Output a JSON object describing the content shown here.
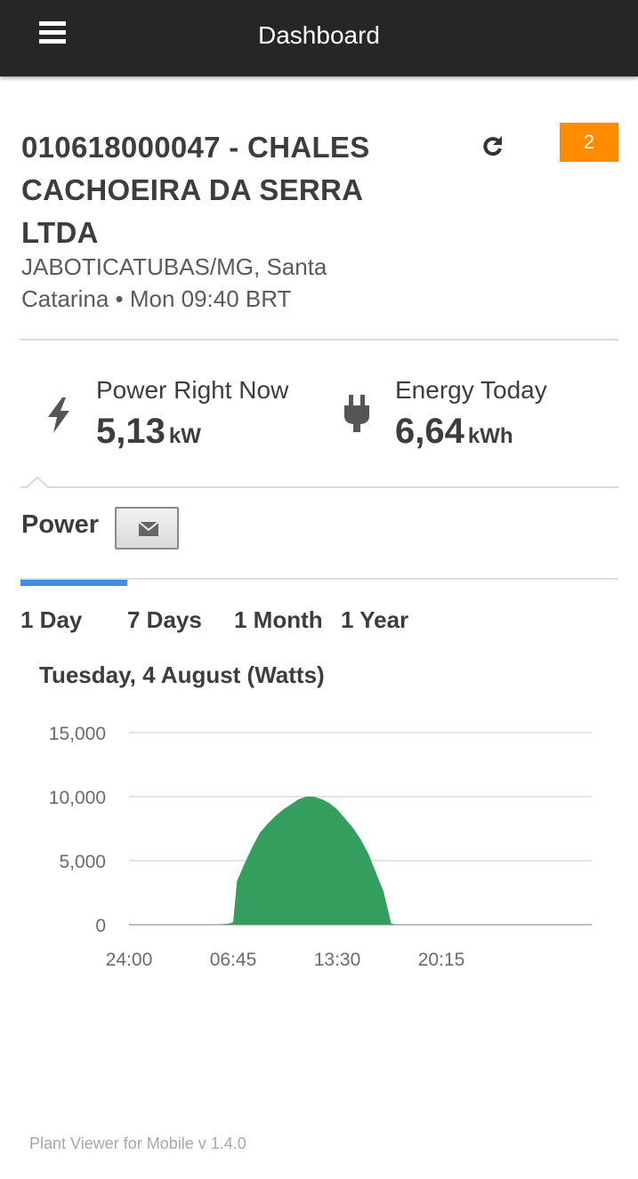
{
  "header": {
    "title": "Dashboard",
    "menu_icon": "hamburger-menu-icon"
  },
  "plant": {
    "title": "010618000047 - CHALES CACHOEIRA DA SERRA LTDA",
    "location": "JABOTICATUBAS/MG, Santa Catarina • Mon 09:40 BRT",
    "alert_count": "2",
    "alert_color": "#ff8c00",
    "refresh_icon": "refresh-icon"
  },
  "stats": {
    "power": {
      "label": "Power Right Now",
      "value": "5,13",
      "unit": "kW",
      "icon": "lightning-bolt-icon"
    },
    "energy": {
      "label": "Energy Today",
      "value": "6,64",
      "unit": "kWh",
      "icon": "power-plug-icon"
    }
  },
  "section": {
    "title": "Power",
    "email_icon": "envelope-icon"
  },
  "tabs": [
    {
      "label": "1 Day",
      "active": true
    },
    {
      "label": "7 Days",
      "active": false
    },
    {
      "label": "1 Month",
      "active": false
    },
    {
      "label": "1 Year",
      "active": false
    }
  ],
  "colors": {
    "accent": "#3d8fe6",
    "series": "#339e5e",
    "header_bg": "#262626"
  },
  "chart_data": {
    "type": "area",
    "title": "Tuesday, 4 August (Watts)",
    "xlabel": "",
    "ylabel": "",
    "x_tick_labels": [
      "24:00",
      "06:45",
      "13:30",
      "20:15"
    ],
    "y_tick_labels": [
      "15,000",
      "10,000",
      "5,000",
      "0"
    ],
    "ylim": [
      0,
      15000
    ],
    "grid": true,
    "legend": "none",
    "series": [
      {
        "x": [
          "00:00",
          "06:00",
          "06:30",
          "06:45",
          "07:00",
          "07:30",
          "08:00",
          "08:30",
          "09:00",
          "09:30",
          "10:00",
          "10:30",
          "11:00",
          "11:30",
          "12:00",
          "12:30",
          "13:00",
          "13:30",
          "14:00",
          "14:30",
          "15:00",
          "15:30",
          "16:00",
          "16:30",
          "17:00",
          "17:15",
          "18:00",
          "23:59"
        ],
        "y": [
          0,
          0,
          100,
          200,
          3400,
          4800,
          6100,
          7200,
          7900,
          8500,
          9000,
          9400,
          9800,
          10000,
          10000,
          9800,
          9500,
          9000,
          8300,
          7600,
          6700,
          5600,
          4100,
          2600,
          100,
          0,
          0,
          0
        ]
      }
    ]
  },
  "footer": {
    "text": "Plant Viewer for Mobile v 1.4.0"
  }
}
